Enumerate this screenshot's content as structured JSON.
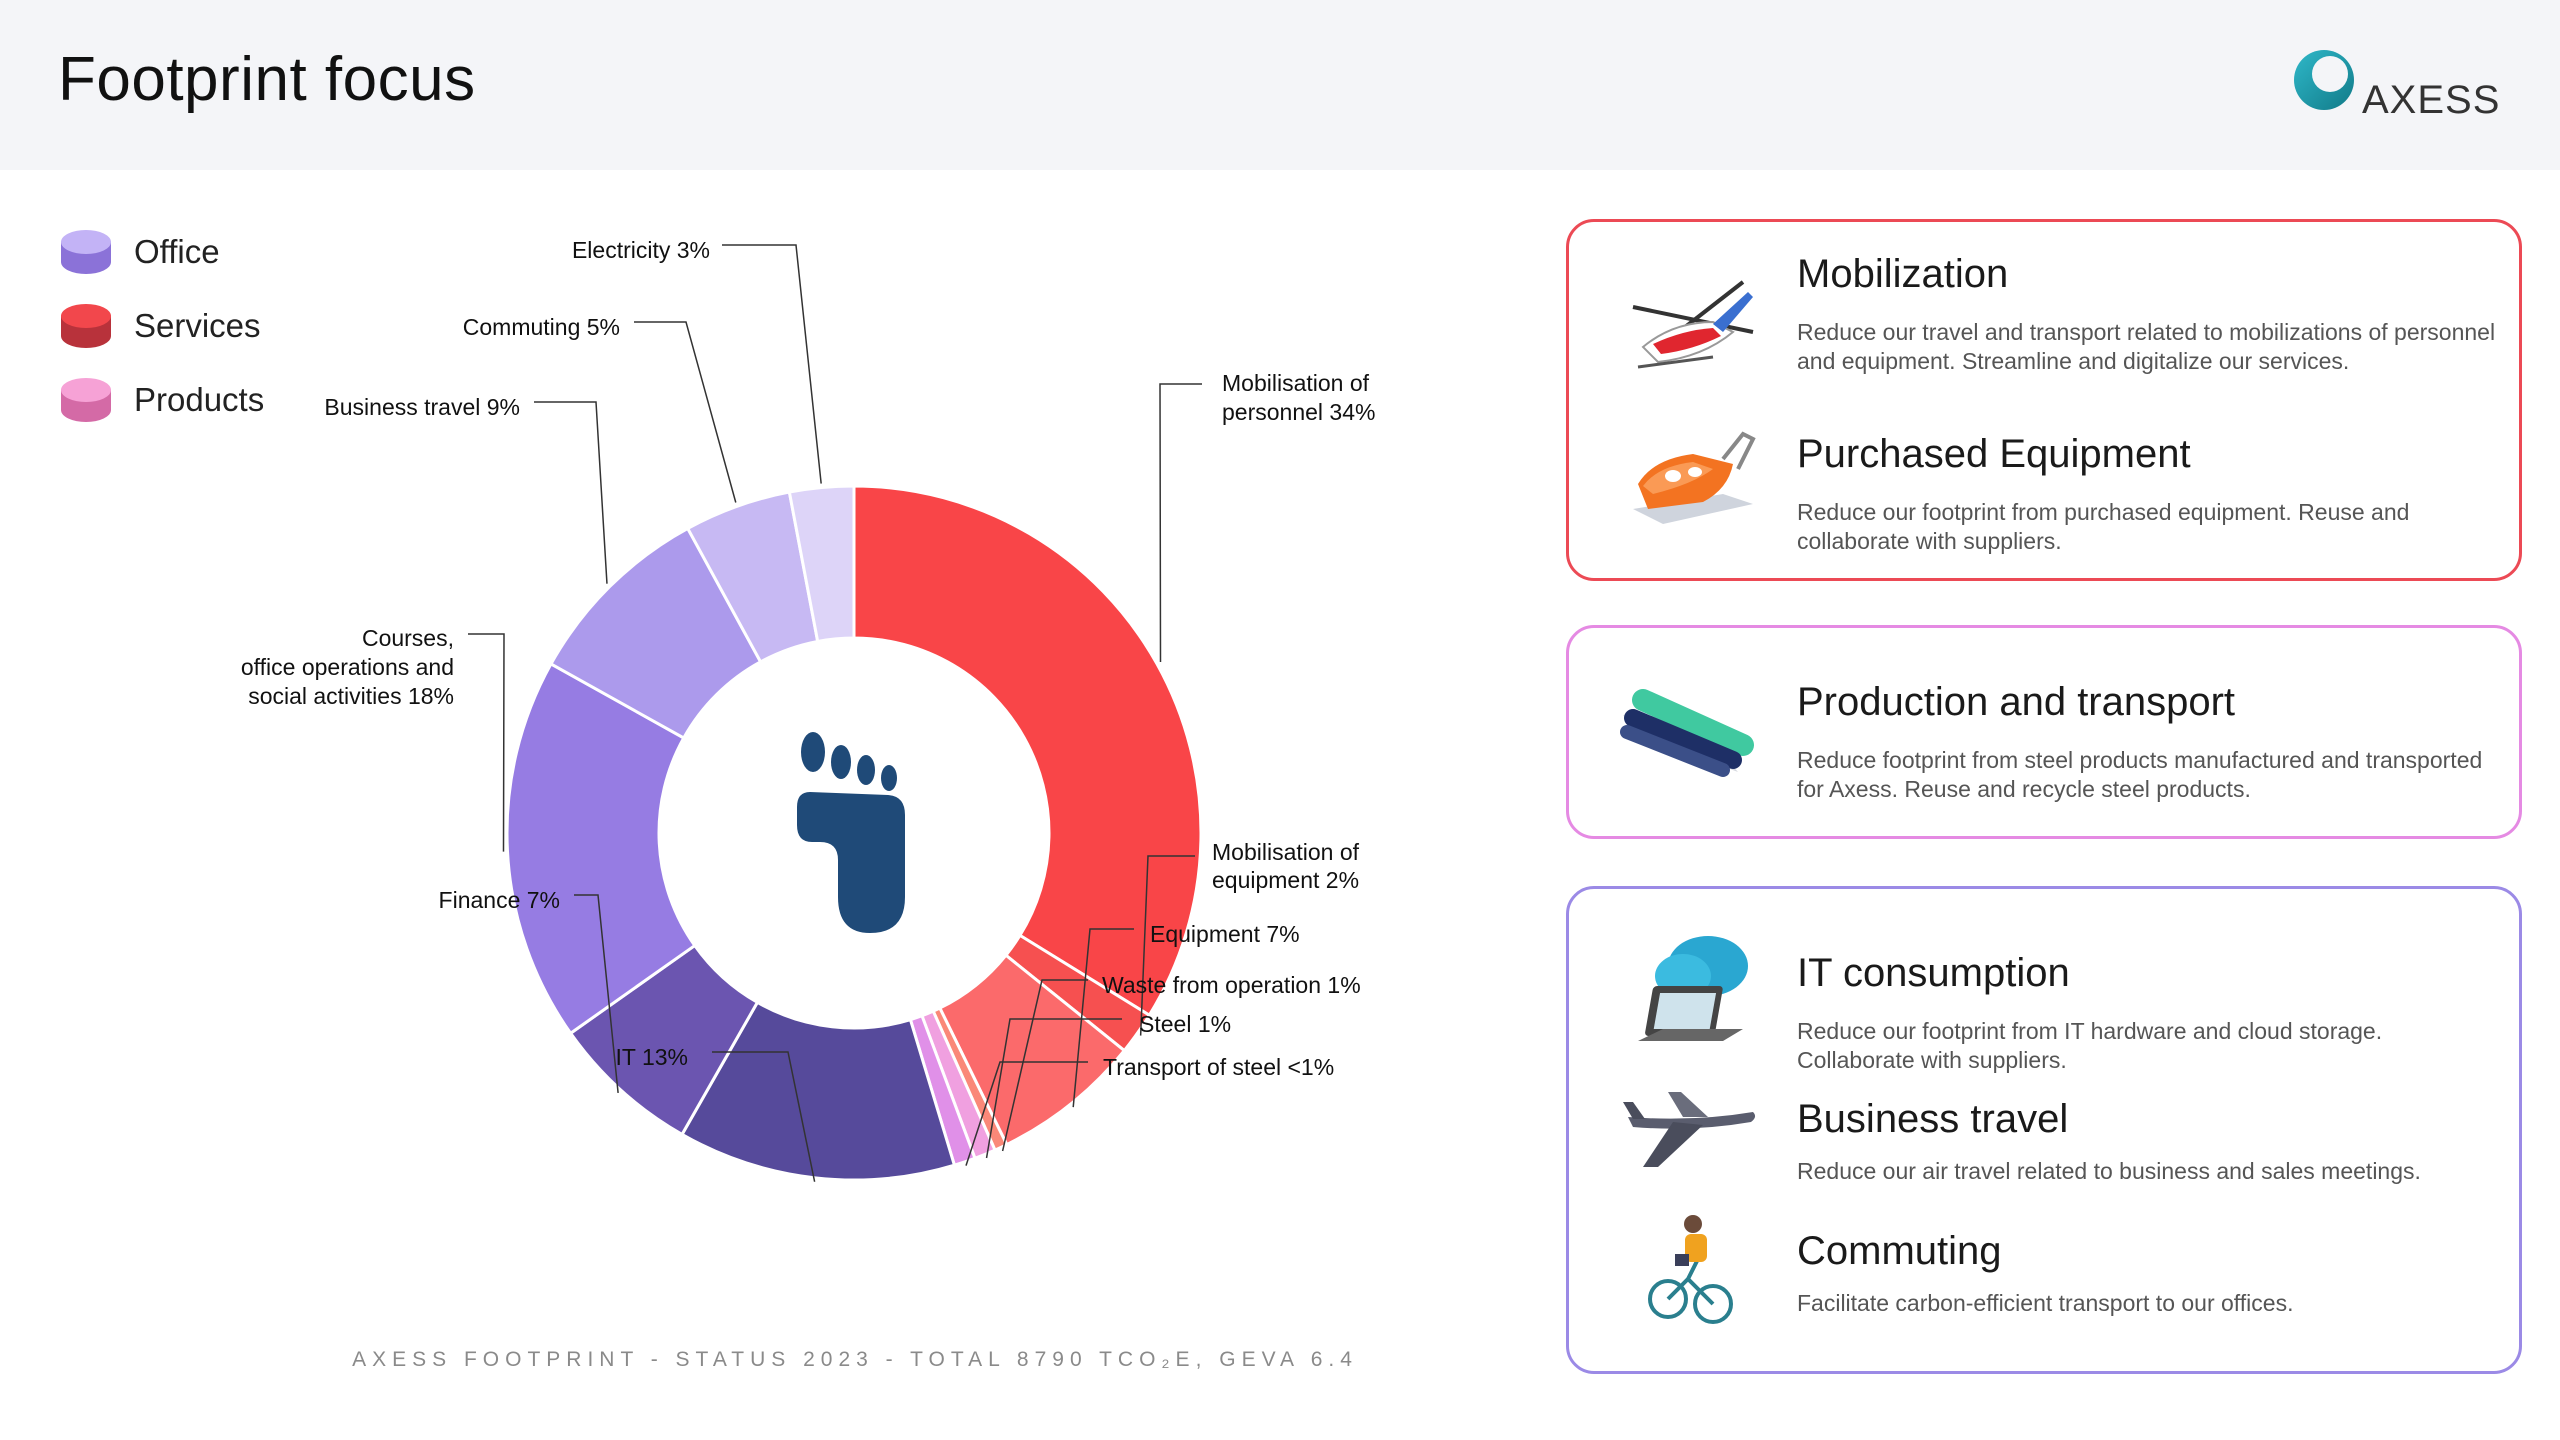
{
  "header": {
    "title": "Footprint focus",
    "logo_text": "AXESS"
  },
  "colors": {
    "office": "#9b82e6",
    "services": "#f44a4f",
    "products": "#f08ad0",
    "footprint_icon": "#1f4a78"
  },
  "legend": [
    {
      "label": "Office",
      "color": "#a790ef"
    },
    {
      "label": "Services",
      "color": "#ef4449"
    },
    {
      "label": "Products",
      "color": "#f08ad0"
    }
  ],
  "chart_data": {
    "type": "pie",
    "variant": "donut",
    "title": "",
    "center_icon": "footprint-icon",
    "slices": [
      {
        "label": "Mobilisation of personnel 34%",
        "category": "Services",
        "value": 34,
        "color": "#f94548"
      },
      {
        "label": "Mobilisation of equipment 2%",
        "category": "Services",
        "value": 2,
        "color": "#f65050"
      },
      {
        "label": "Equipment 7%",
        "category": "Services",
        "value": 7,
        "color": "#fb6a6b"
      },
      {
        "label": "Waste from operation 1%",
        "category": "Services",
        "value": 0.6,
        "color": "#fa8878"
      },
      {
        "label": "Steel 1%",
        "category": "Products",
        "value": 1,
        "color": "#f0a0e0"
      },
      {
        "label": "Transport of steel <1%",
        "category": "Products",
        "value": 1,
        "color": "#e090e8"
      },
      {
        "label": "IT 13%",
        "category": "Office",
        "value": 13,
        "color": "#564a9b"
      },
      {
        "label": "Finance 7%",
        "category": "Office",
        "value": 7,
        "color": "#6b55b0"
      },
      {
        "label": "Courses, office operations and social activities 18%",
        "category": "Office",
        "value": 18,
        "color": "#967ce3"
      },
      {
        "label": "Business travel 9%",
        "category": "Office",
        "value": 9,
        "color": "#ac9aec"
      },
      {
        "label": "Commuting 5%",
        "category": "Office",
        "value": 5,
        "color": "#c7b9f3"
      },
      {
        "label": "Electricity 3%",
        "category": "Office",
        "value": 3,
        "color": "#ddd4f8"
      }
    ],
    "footer": "AXESS FOOTPRINT - STATUS 2023 - TOTAL 8790 TCO₂E, GEVA 6.4"
  },
  "panels": [
    {
      "border_color": "#ec4a55",
      "items": [
        {
          "icon": "helicopter-icon",
          "title": "Mobilization",
          "desc": "Reduce our travel and transport related to mobilizations of personnel and equipment. Streamline and digitalize our services."
        },
        {
          "icon": "equipment-icon",
          "title": "Purchased Equipment",
          "desc": "Reduce our footprint from purchased equipment. Reuse and collaborate with suppliers."
        }
      ]
    },
    {
      "border_color": "#e58ae3",
      "items": [
        {
          "icon": "steel-pipes-icon",
          "title": "Production and transport",
          "desc": "Reduce footprint from steel products manufactured and transported for Axess. Reuse and recycle steel products."
        }
      ]
    },
    {
      "border_color": "#9b8ae6",
      "items": [
        {
          "icon": "cloud-laptop-icon",
          "title": "IT consumption",
          "desc": "Reduce our footprint from IT hardware and cloud storage. Collaborate with suppliers."
        },
        {
          "icon": "airplane-icon",
          "title": "Business travel",
          "desc": "Reduce our air travel related to business and sales meetings."
        },
        {
          "icon": "cyclist-icon",
          "title": "Commuting",
          "desc": "Facilitate carbon-efficient transport to our offices."
        }
      ]
    }
  ]
}
